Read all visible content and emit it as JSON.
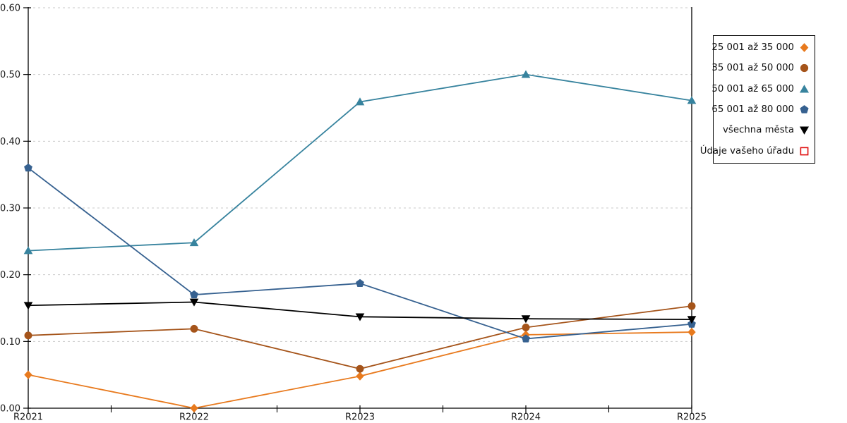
{
  "chart_data": {
    "type": "line",
    "title": "",
    "xlabel": "",
    "ylabel": "",
    "categories": [
      "R2021",
      "R2022",
      "R2023",
      "R2024",
      "R2025"
    ],
    "series": [
      {
        "name": "25 001 až 35 000",
        "marker": "diamond",
        "color": "#E87A1E",
        "values": [
          0.05,
          0.0,
          0.048,
          0.11,
          0.114
        ]
      },
      {
        "name": "35 001 až 50 000",
        "marker": "circle",
        "color": "#A5541A",
        "values": [
          0.109,
          0.119,
          0.059,
          0.121,
          0.153
        ]
      },
      {
        "name": "50 001 až 65 000",
        "marker": "triangle-up",
        "color": "#37839E",
        "values": [
          0.236,
          0.248,
          0.459,
          0.5,
          0.461
        ]
      },
      {
        "name": "65 001 až 80 000",
        "marker": "pentagon",
        "color": "#366190",
        "values": [
          0.36,
          0.17,
          0.187,
          0.104,
          0.126
        ]
      },
      {
        "name": "všechna města",
        "marker": "triangle-down",
        "color": "#000000",
        "values": [
          0.154,
          0.159,
          0.137,
          0.134,
          0.133
        ]
      },
      {
        "name": "Údaje vašeho úřadu",
        "marker": "square-open",
        "color": "#E01010",
        "values": []
      }
    ],
    "ylim": [
      0,
      0.6
    ],
    "yticks": [
      "0.00",
      "0.10",
      "0.20",
      "0.30",
      "0.40",
      "0.50",
      "0.60"
    ],
    "grid": "horizontal-dashed",
    "grid_color": "#c9c9c9",
    "axis_color": "#000000",
    "tick_label_color": "#1a1a1a",
    "legend_position": "right",
    "background": "#ffffff"
  }
}
